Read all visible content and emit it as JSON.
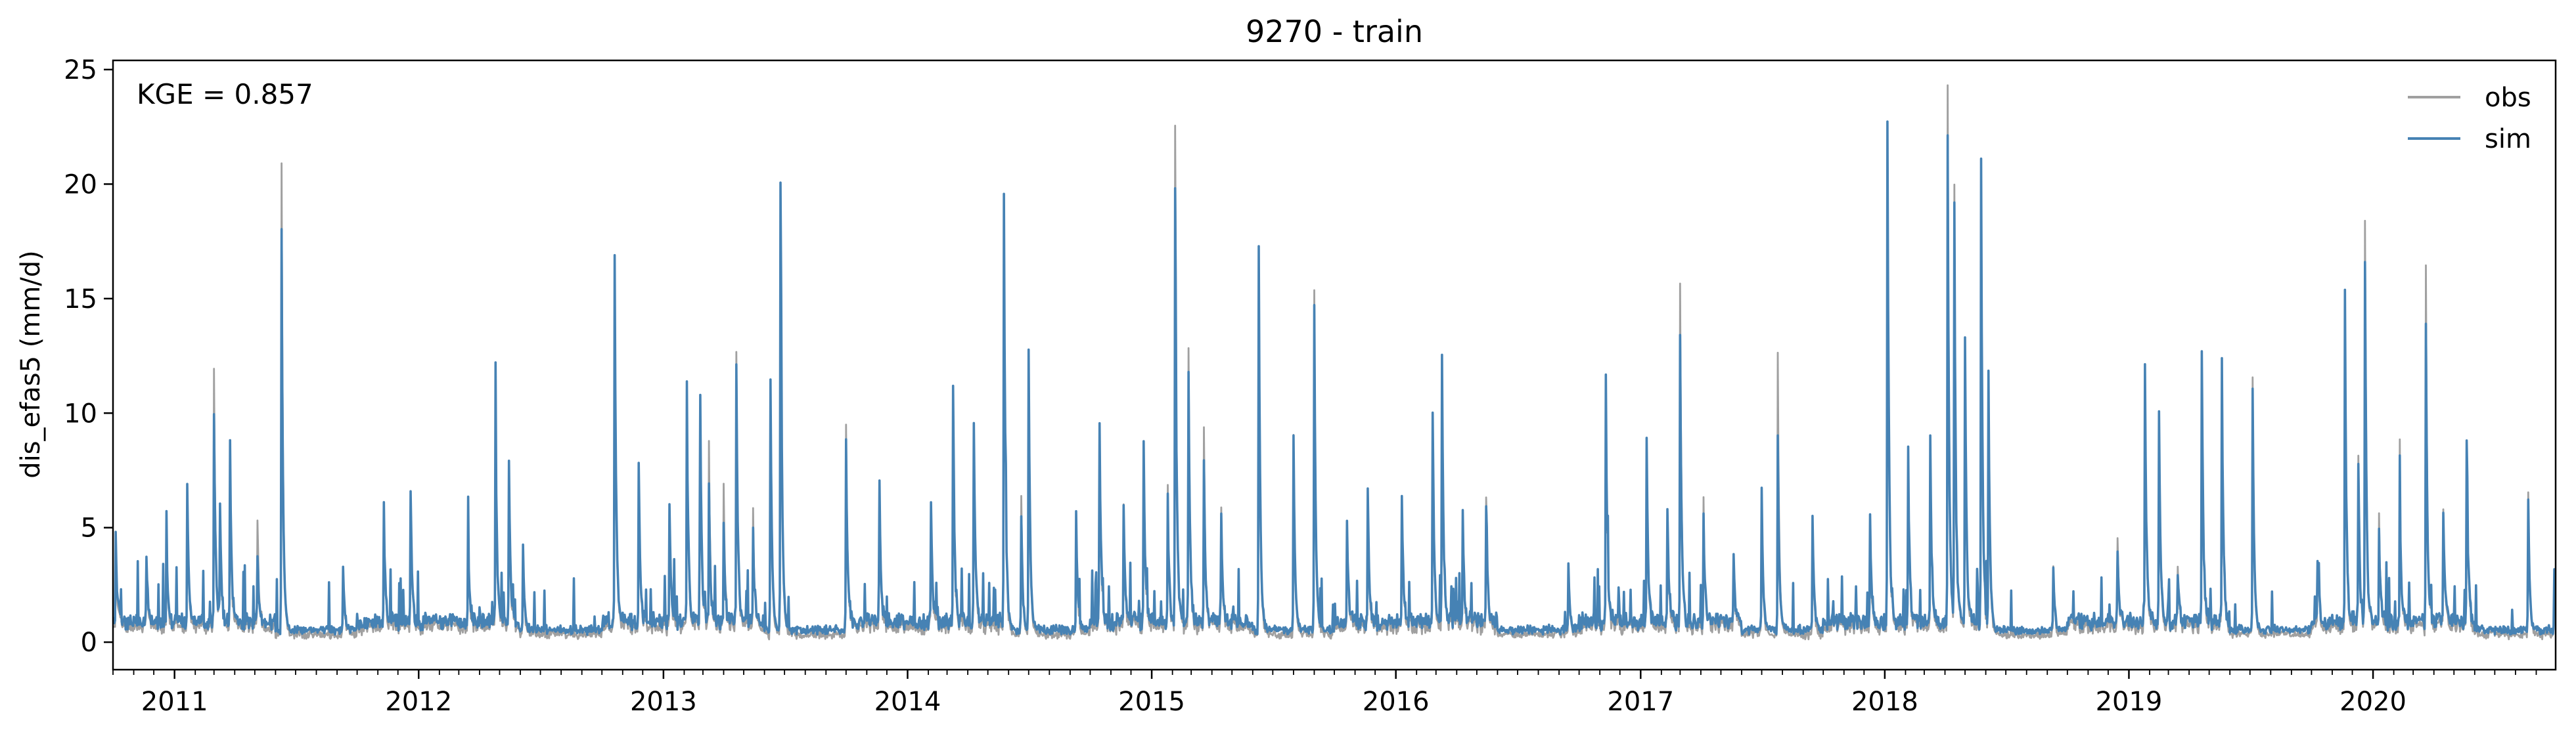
{
  "chart_data": {
    "type": "line",
    "title": "9270 - train",
    "xlabel": "",
    "ylabel": "dis_efas5 (mm/d)",
    "annotation": "KGE = 0.857",
    "xlim": [
      "2010-10-01",
      "2020-09-30"
    ],
    "ylim": [
      -1.2,
      25.4
    ],
    "yticks": [
      0,
      5,
      10,
      15,
      20,
      25
    ],
    "xticks": [
      "2011",
      "2012",
      "2013",
      "2014",
      "2015",
      "2016",
      "2017",
      "2018",
      "2019",
      "2020"
    ],
    "legend": {
      "placement": "top-right",
      "entries": [
        "obs",
        "sim"
      ]
    },
    "grid": false,
    "colors": {
      "obs": "#a0a0a0",
      "sim": "#4682b4"
    },
    "series": [
      {
        "name": "obs",
        "color": "#a0a0a0",
        "baseflow": 0.15,
        "peaks": [
          [
            "2010-10-05",
            3.6
          ],
          [
            "2010-11-20",
            2.9
          ],
          [
            "2010-12-20",
            3.1
          ],
          [
            "2011-01-20",
            6.0
          ],
          [
            "2011-03-01",
            11.4
          ],
          [
            "2011-03-10",
            5.0
          ],
          [
            "2011-03-25",
            7.7
          ],
          [
            "2011-05-05",
            4.8
          ],
          [
            "2011-06-10",
            20.5
          ],
          [
            "2011-09-10",
            2.8
          ],
          [
            "2011-11-10",
            4.2
          ],
          [
            "2011-12-20",
            6.0
          ],
          [
            "2012-03-15",
            3.6
          ],
          [
            "2012-04-25",
            9.0
          ],
          [
            "2012-05-15",
            6.8
          ],
          [
            "2012-06-05",
            3.6
          ],
          [
            "2012-10-20",
            15.9
          ],
          [
            "2012-11-25",
            7.2
          ],
          [
            "2013-01-10",
            5.0
          ],
          [
            "2013-02-05",
            10.2
          ],
          [
            "2013-02-25",
            9.6
          ],
          [
            "2013-03-10",
            8.0
          ],
          [
            "2013-04-01",
            6.5
          ],
          [
            "2013-04-20",
            11.8
          ],
          [
            "2013-05-15",
            5.0
          ],
          [
            "2013-06-10",
            11.0
          ],
          [
            "2013-06-25",
            19.4
          ],
          [
            "2013-10-01",
            9.1
          ],
          [
            "2013-11-20",
            6.0
          ],
          [
            "2014-02-05",
            5.3
          ],
          [
            "2014-03-10",
            10.5
          ],
          [
            "2014-04-10",
            8.9
          ],
          [
            "2014-05-25",
            18.8
          ],
          [
            "2014-06-20",
            6.0
          ],
          [
            "2014-07-01",
            12.2
          ],
          [
            "2014-09-10",
            5.2
          ],
          [
            "2014-10-15",
            9.0
          ],
          [
            "2014-11-20",
            5.0
          ],
          [
            "2014-12-20",
            8.0
          ],
          [
            "2015-01-25",
            6.0
          ],
          [
            "2015-02-05",
            21.7
          ],
          [
            "2015-02-25",
            12.3
          ],
          [
            "2015-03-20",
            9.0
          ],
          [
            "2015-04-15",
            5.0
          ],
          [
            "2015-06-10",
            16.6
          ],
          [
            "2015-08-01",
            8.6
          ],
          [
            "2015-09-01",
            15.1
          ],
          [
            "2015-10-20",
            4.0
          ],
          [
            "2015-11-20",
            6.0
          ],
          [
            "2016-01-10",
            5.5
          ],
          [
            "2016-02-25",
            9.4
          ],
          [
            "2016-03-10",
            11.6
          ],
          [
            "2016-04-10",
            5.0
          ],
          [
            "2016-05-15",
            6.0
          ],
          [
            "2016-09-15",
            3.0
          ],
          [
            "2016-11-10",
            10.4
          ],
          [
            "2017-01-10",
            8.2
          ],
          [
            "2017-02-10",
            5.0
          ],
          [
            "2017-03-01",
            14.8
          ],
          [
            "2017-04-05",
            5.5
          ],
          [
            "2017-05-20",
            3.0
          ],
          [
            "2017-07-01",
            6.1
          ],
          [
            "2017-07-25",
            12.3
          ],
          [
            "2017-09-15",
            5.0
          ],
          [
            "2017-12-10",
            4.5
          ],
          [
            "2018-01-05",
            22.0
          ],
          [
            "2018-02-05",
            7.5
          ],
          [
            "2018-03-10",
            8.0
          ],
          [
            "2018-04-05",
            24.0
          ],
          [
            "2018-04-15",
            18.9
          ],
          [
            "2018-05-01",
            12.2
          ],
          [
            "2018-05-25",
            20.2
          ],
          [
            "2018-06-05",
            11.3
          ],
          [
            "2018-09-10",
            3.0
          ],
          [
            "2018-12-15",
            3.9
          ],
          [
            "2019-01-25",
            11.3
          ],
          [
            "2019-02-15",
            9.6
          ],
          [
            "2019-03-15",
            2.8
          ],
          [
            "2019-04-20",
            11.8
          ],
          [
            "2019-05-20",
            11.3
          ],
          [
            "2019-07-05",
            11.3
          ],
          [
            "2019-10-10",
            3.0
          ],
          [
            "2019-11-20",
            14.2
          ],
          [
            "2019-12-10",
            7.7
          ],
          [
            "2019-12-20",
            17.5
          ],
          [
            "2020-01-10",
            5.0
          ],
          [
            "2020-02-10",
            6.4
          ],
          [
            "2020-03-20",
            15.8
          ],
          [
            "2020-04-15",
            5.4
          ],
          [
            "2020-05-20",
            8.1
          ],
          [
            "2020-08-20",
            6.4
          ],
          [
            "2020-09-28",
            2.8
          ]
        ]
      },
      {
        "name": "sim",
        "color": "#4682b4",
        "baseflow": 0.35,
        "peaks": [
          [
            "2010-10-05",
            3.7
          ],
          [
            "2010-11-20",
            2.9
          ],
          [
            "2010-12-20",
            3.0
          ],
          [
            "2011-01-20",
            6.2
          ],
          [
            "2011-03-01",
            9.3
          ],
          [
            "2011-03-10",
            4.9
          ],
          [
            "2011-03-25",
            7.8
          ],
          [
            "2011-05-05",
            3.1
          ],
          [
            "2011-06-10",
            17.5
          ],
          [
            "2011-09-10",
            2.8
          ],
          [
            "2011-11-10",
            4.3
          ],
          [
            "2011-12-20",
            6.0
          ],
          [
            "2012-03-15",
            3.7
          ],
          [
            "2012-04-25",
            9.0
          ],
          [
            "2012-05-15",
            6.8
          ],
          [
            "2012-06-05",
            3.6
          ],
          [
            "2012-10-20",
            15.9
          ],
          [
            "2012-11-25",
            7.1
          ],
          [
            "2013-01-10",
            5.0
          ],
          [
            "2013-02-05",
            10.2
          ],
          [
            "2013-02-25",
            9.6
          ],
          [
            "2013-03-10",
            6.0
          ],
          [
            "2013-04-01",
            4.5
          ],
          [
            "2013-04-20",
            11.3
          ],
          [
            "2013-05-15",
            4.0
          ],
          [
            "2013-06-10",
            11.0
          ],
          [
            "2013-06-25",
            19.4
          ],
          [
            "2013-10-01",
            8.2
          ],
          [
            "2013-11-20",
            6.0
          ],
          [
            "2014-02-05",
            5.4
          ],
          [
            "2014-03-10",
            10.5
          ],
          [
            "2014-04-10",
            8.9
          ],
          [
            "2014-05-25",
            18.8
          ],
          [
            "2014-06-20",
            4.8
          ],
          [
            "2014-07-01",
            12.2
          ],
          [
            "2014-09-10",
            5.2
          ],
          [
            "2014-10-15",
            8.9
          ],
          [
            "2014-11-20",
            4.9
          ],
          [
            "2014-12-20",
            7.9
          ],
          [
            "2015-01-25",
            5.5
          ],
          [
            "2015-02-05",
            18.9
          ],
          [
            "2015-02-25",
            11.0
          ],
          [
            "2015-03-20",
            7.3
          ],
          [
            "2015-04-15",
            4.5
          ],
          [
            "2015-06-10",
            16.6
          ],
          [
            "2015-08-01",
            8.3
          ],
          [
            "2015-09-01",
            14.0
          ],
          [
            "2015-10-20",
            4.1
          ],
          [
            "2015-11-20",
            6.0
          ],
          [
            "2016-01-10",
            5.5
          ],
          [
            "2016-02-25",
            9.4
          ],
          [
            "2016-03-10",
            11.6
          ],
          [
            "2016-04-10",
            5.0
          ],
          [
            "2016-05-15",
            5.4
          ],
          [
            "2016-09-15",
            2.9
          ],
          [
            "2016-11-10",
            10.4
          ],
          [
            "2017-01-10",
            8.0
          ],
          [
            "2017-02-10",
            5.0
          ],
          [
            "2017-03-01",
            12.3
          ],
          [
            "2017-04-05",
            4.7
          ],
          [
            "2017-05-20",
            2.8
          ],
          [
            "2017-07-01",
            6.1
          ],
          [
            "2017-07-25",
            8.4
          ],
          [
            "2017-09-15",
            5.0
          ],
          [
            "2017-12-10",
            4.5
          ],
          [
            "2018-01-05",
            22.0
          ],
          [
            "2018-02-05",
            7.5
          ],
          [
            "2018-03-10",
            8.0
          ],
          [
            "2018-04-05",
            21.4
          ],
          [
            "2018-04-15",
            18.0
          ],
          [
            "2018-05-01",
            12.2
          ],
          [
            "2018-05-25",
            20.2
          ],
          [
            "2018-06-05",
            11.2
          ],
          [
            "2018-09-10",
            2.8
          ],
          [
            "2018-12-15",
            3.1
          ],
          [
            "2019-01-25",
            11.3
          ],
          [
            "2019-02-15",
            9.5
          ],
          [
            "2019-03-15",
            2.4
          ],
          [
            "2019-04-20",
            11.8
          ],
          [
            "2019-05-20",
            11.3
          ],
          [
            "2019-07-05",
            10.6
          ],
          [
            "2019-10-10",
            3.0
          ],
          [
            "2019-11-20",
            14.2
          ],
          [
            "2019-12-10",
            7.2
          ],
          [
            "2019-12-20",
            15.5
          ],
          [
            "2020-01-10",
            4.1
          ],
          [
            "2020-02-10",
            5.6
          ],
          [
            "2020-03-20",
            13.2
          ],
          [
            "2020-04-15",
            5.1
          ],
          [
            "2020-05-20",
            8.1
          ],
          [
            "2020-08-20",
            5.8
          ],
          [
            "2020-09-28",
            2.8
          ]
        ]
      }
    ]
  }
}
